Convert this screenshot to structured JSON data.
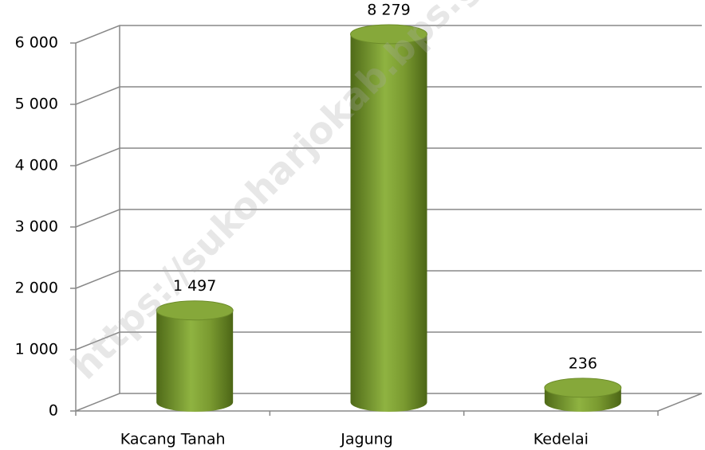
{
  "chart_data": {
    "type": "bar3d",
    "categories": [
      "Kacang Tanah",
      "Jagung",
      "Kedelai"
    ],
    "values": [
      1497,
      8279,
      236
    ],
    "value_labels": [
      "1 497",
      "8 279",
      "236"
    ],
    "color": "#76933c",
    "ylim": [
      0,
      6000
    ],
    "yticks": [
      {
        "value": 0,
        "label": "0"
      },
      {
        "value": 1000,
        "label": "1 000"
      },
      {
        "value": 2000,
        "label": "2 000"
      },
      {
        "value": 3000,
        "label": "3 000"
      },
      {
        "value": 4000,
        "label": "4 000"
      },
      {
        "value": 5000,
        "label": "5 000"
      },
      {
        "value": 6000,
        "label": "6 000"
      }
    ],
    "grid": true,
    "watermark": "https://sukoharjokab.bps.go.id"
  }
}
